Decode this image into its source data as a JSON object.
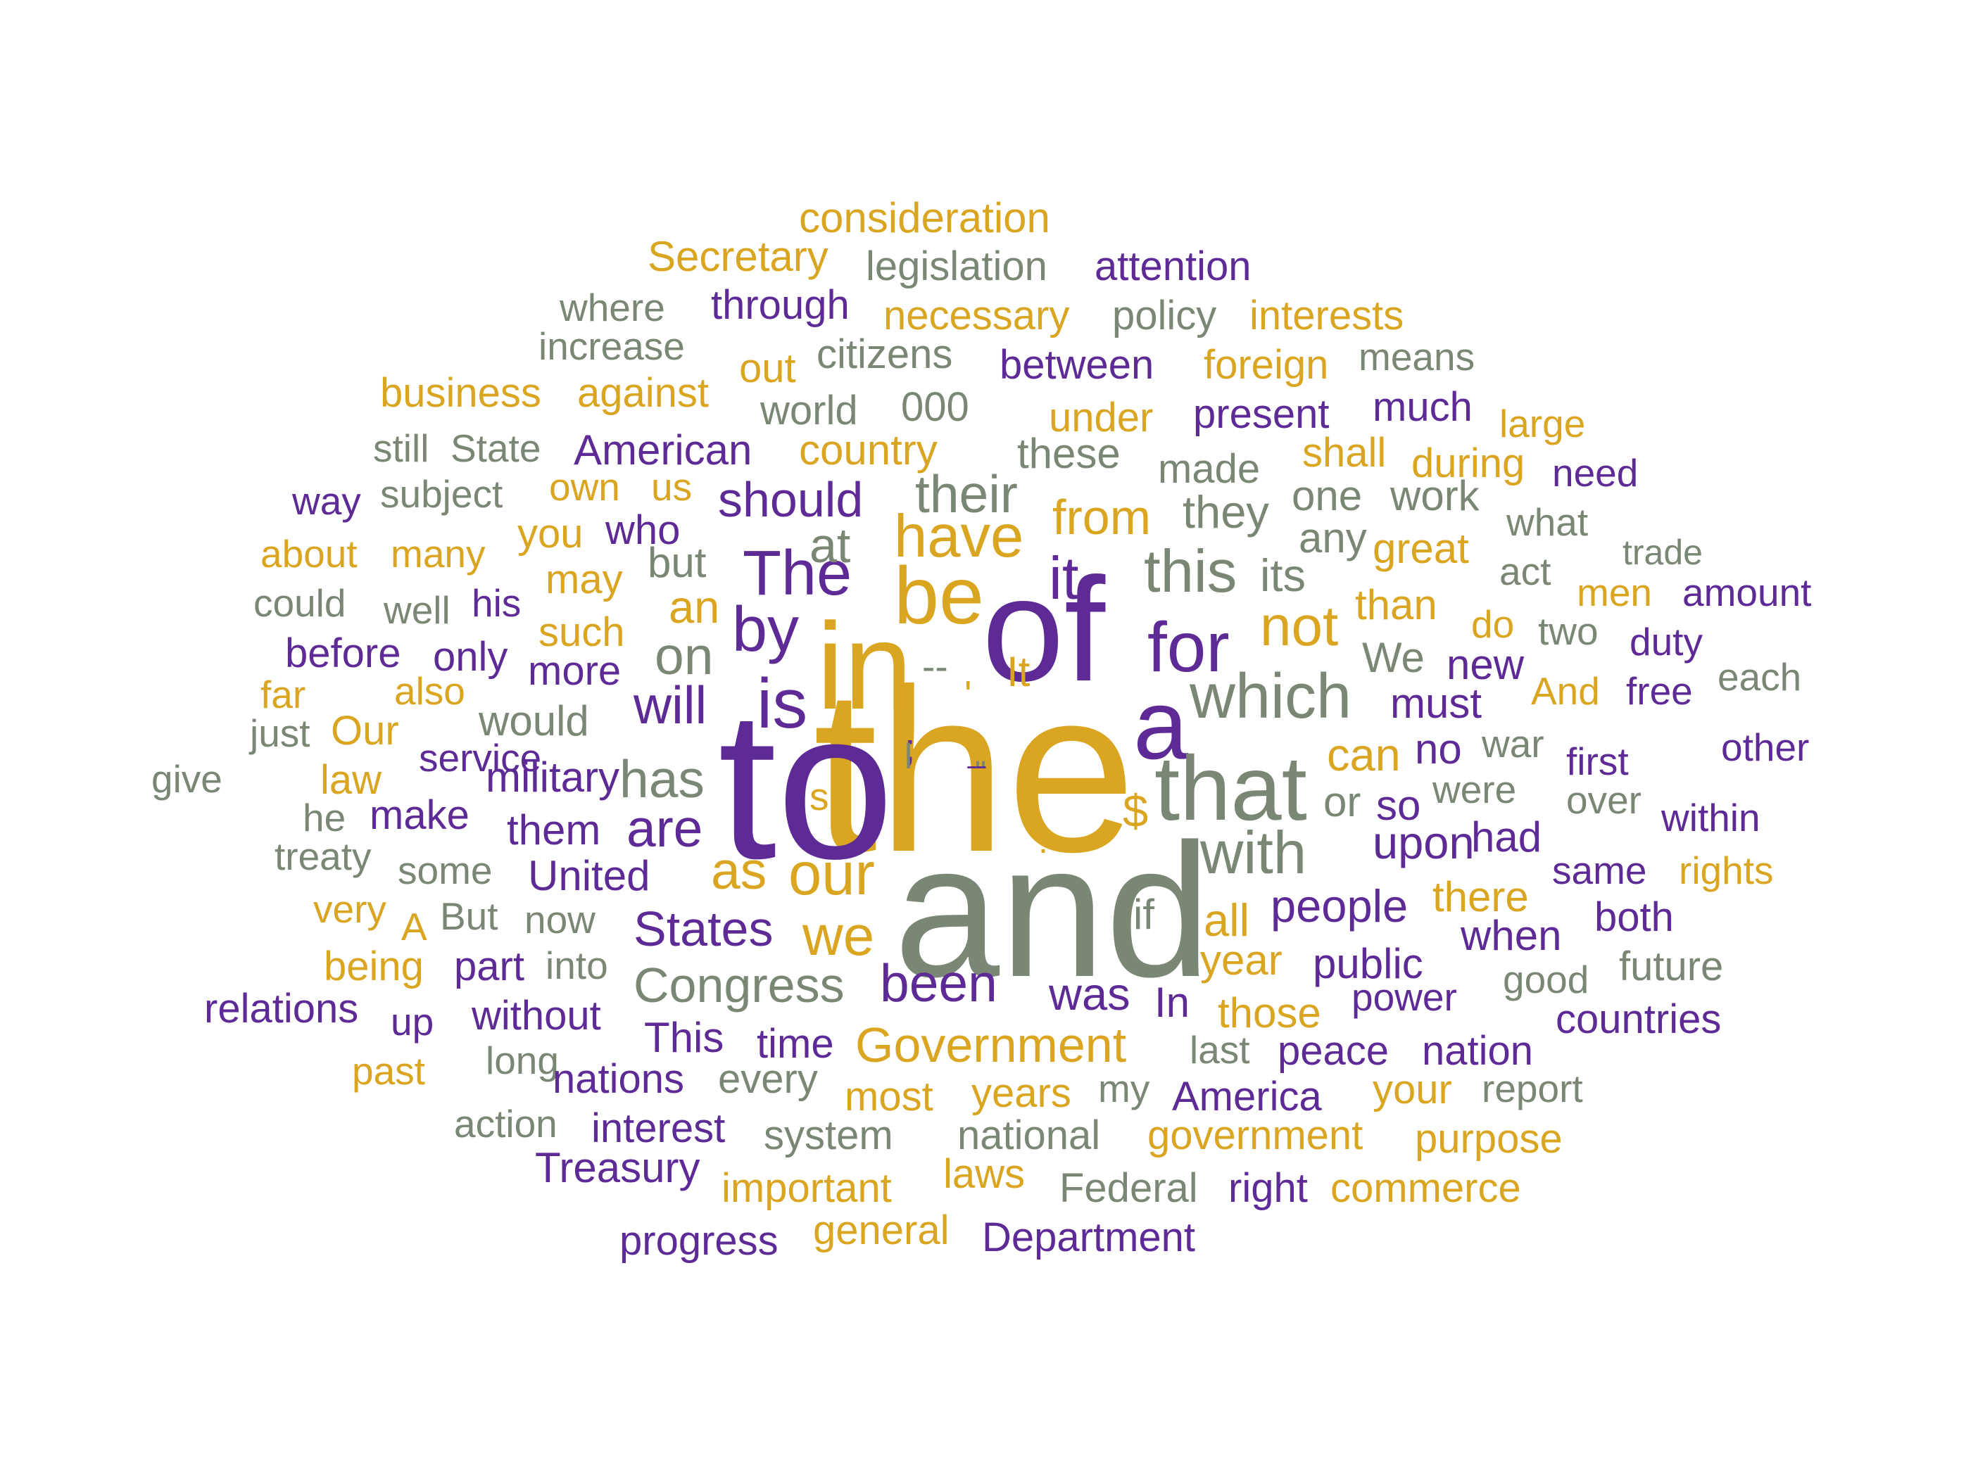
{
  "colors": {
    "gold": "#DAA520",
    "purple": "#5E2A96",
    "gray": "#7A8775"
  },
  "words": [
    {
      "t": "the",
      "c": "gold"
    },
    {
      "t": "to",
      "c": "purple"
    },
    {
      "t": "and",
      "c": "gray"
    },
    {
      "t": "of",
      "c": "purple"
    },
    {
      "t": "in",
      "c": "gold"
    },
    {
      "t": "a",
      "c": "purple"
    },
    {
      "t": "that",
      "c": "gray"
    },
    {
      "t": "be",
      "c": "gold"
    },
    {
      "t": "is",
      "c": "purple"
    },
    {
      "t": "for",
      "c": "purple"
    },
    {
      "t": "which",
      "c": "gray"
    },
    {
      "t": "our",
      "c": "gold"
    },
    {
      "t": "with",
      "c": "gray"
    },
    {
      "t": "by",
      "c": "purple"
    },
    {
      "t": "The",
      "c": "purple"
    },
    {
      "t": "have",
      "c": "gold"
    },
    {
      "t": "this",
      "c": "gray"
    },
    {
      "t": "not",
      "c": "gold"
    },
    {
      "t": "it",
      "c": "purple"
    },
    {
      "t": "we",
      "c": "gold"
    },
    {
      "t": "as",
      "c": "gold"
    },
    {
      "t": "has",
      "c": "gray"
    },
    {
      "t": "are",
      "c": "purple"
    },
    {
      "t": "will",
      "c": "purple"
    },
    {
      "t": "on",
      "c": "gray"
    },
    {
      "t": "their",
      "c": "gray"
    },
    {
      "t": "from",
      "c": "gold"
    },
    {
      "t": "been",
      "c": "purple"
    },
    {
      "t": "Government",
      "c": "gold"
    },
    {
      "t": "Congress",
      "c": "gray"
    },
    {
      "t": "States",
      "c": "purple"
    },
    {
      "t": "should",
      "c": "purple"
    },
    {
      "t": "at",
      "c": "gray"
    },
    {
      "t": "an",
      "c": "gold"
    },
    {
      "t": "was",
      "c": "purple"
    },
    {
      "t": "all",
      "c": "gold"
    },
    {
      "t": "people",
      "c": "purple"
    },
    {
      "t": "year",
      "c": "gold"
    },
    {
      "t": "upon",
      "c": "purple"
    },
    {
      "t": "can",
      "c": "gold"
    },
    {
      "t": "no",
      "c": "purple"
    },
    {
      "t": "must",
      "c": "purple"
    },
    {
      "t": "We",
      "c": "gray"
    },
    {
      "t": "new",
      "c": "purple"
    },
    {
      "t": "than",
      "c": "gold"
    },
    {
      "t": "its",
      "c": "gray"
    },
    {
      "t": "they",
      "c": "gray"
    },
    {
      "t": "any",
      "c": "gray"
    },
    {
      "t": "great",
      "c": "gold"
    },
    {
      "t": "one",
      "c": "gray"
    },
    {
      "t": "work",
      "c": "gray"
    },
    {
      "t": "or",
      "c": "gray"
    },
    {
      "t": "so",
      "c": "purple"
    },
    {
      "t": "were",
      "c": "gray"
    },
    {
      "t": "had",
      "c": "purple"
    },
    {
      "t": "public",
      "c": "purple"
    },
    {
      "t": "power",
      "c": "purple"
    },
    {
      "t": "those",
      "c": "gold"
    },
    {
      "t": "there",
      "c": "gold"
    },
    {
      "t": "when",
      "c": "purple"
    },
    {
      "t": "In",
      "c": "purple"
    },
    {
      "t": "if",
      "c": "gray"
    },
    {
      "t": "$",
      "c": "gold"
    },
    {
      "t": "It",
      "c": "gold"
    },
    {
      "t": "s",
      "c": "gold"
    },
    {
      "t": "--",
      "c": "gray"
    },
    {
      "t": ";",
      "c": "purple"
    },
    {
      "t": ":",
      "c": "gold"
    },
    {
      "t": "'",
      "c": "gold"
    },
    {
      "t": "\"",
      "c": "gray"
    },
    {
      "t": "_",
      "c": "purple"
    },
    {
      "t": "l",
      "c": "gray"
    },
    {
      "t": "consideration",
      "c": "gold"
    },
    {
      "t": "Secretary",
      "c": "gold"
    },
    {
      "t": "legislation",
      "c": "gray"
    },
    {
      "t": "attention",
      "c": "purple"
    },
    {
      "t": "where",
      "c": "gray"
    },
    {
      "t": "through",
      "c": "purple"
    },
    {
      "t": "necessary",
      "c": "gold"
    },
    {
      "t": "policy",
      "c": "gray"
    },
    {
      "t": "interests",
      "c": "gold"
    },
    {
      "t": "increase",
      "c": "gray"
    },
    {
      "t": "out",
      "c": "gold"
    },
    {
      "t": "citizens",
      "c": "gray"
    },
    {
      "t": "between",
      "c": "purple"
    },
    {
      "t": "foreign",
      "c": "gold"
    },
    {
      "t": "means",
      "c": "gray"
    },
    {
      "t": "business",
      "c": "gold"
    },
    {
      "t": "against",
      "c": "gold"
    },
    {
      "t": "world",
      "c": "gray"
    },
    {
      "t": "000",
      "c": "gray"
    },
    {
      "t": "under",
      "c": "gold"
    },
    {
      "t": "present",
      "c": "purple"
    },
    {
      "t": "much",
      "c": "purple"
    },
    {
      "t": "large",
      "c": "gold"
    },
    {
      "t": "still",
      "c": "gray"
    },
    {
      "t": "State",
      "c": "gray"
    },
    {
      "t": "American",
      "c": "purple"
    },
    {
      "t": "country",
      "c": "gold"
    },
    {
      "t": "these",
      "c": "gray"
    },
    {
      "t": "made",
      "c": "gray"
    },
    {
      "t": "shall",
      "c": "gold"
    },
    {
      "t": "during",
      "c": "gold"
    },
    {
      "t": "need",
      "c": "purple"
    },
    {
      "t": "way",
      "c": "purple"
    },
    {
      "t": "subject",
      "c": "gray"
    },
    {
      "t": "own",
      "c": "gold"
    },
    {
      "t": "us",
      "c": "gold"
    },
    {
      "t": "what",
      "c": "gray"
    },
    {
      "t": "you",
      "c": "gold"
    },
    {
      "t": "who",
      "c": "purple"
    },
    {
      "t": "about",
      "c": "gold"
    },
    {
      "t": "many",
      "c": "gold"
    },
    {
      "t": "but",
      "c": "gray"
    },
    {
      "t": "trade",
      "c": "gray"
    },
    {
      "t": "act",
      "c": "gray"
    },
    {
      "t": "could",
      "c": "gray"
    },
    {
      "t": "well",
      "c": "gray"
    },
    {
      "t": "his",
      "c": "purple"
    },
    {
      "t": "may",
      "c": "gold"
    },
    {
      "t": "men",
      "c": "gold"
    },
    {
      "t": "amount",
      "c": "purple"
    },
    {
      "t": "such",
      "c": "gold"
    },
    {
      "t": "do",
      "c": "gold"
    },
    {
      "t": "two",
      "c": "gray"
    },
    {
      "t": "before",
      "c": "purple"
    },
    {
      "t": "only",
      "c": "purple"
    },
    {
      "t": "more",
      "c": "purple"
    },
    {
      "t": "duty",
      "c": "purple"
    },
    {
      "t": "far",
      "c": "gold"
    },
    {
      "t": "also",
      "c": "gold"
    },
    {
      "t": "And",
      "c": "gold"
    },
    {
      "t": "free",
      "c": "purple"
    },
    {
      "t": "each",
      "c": "gray"
    },
    {
      "t": "just",
      "c": "gray"
    },
    {
      "t": "Our",
      "c": "gold"
    },
    {
      "t": "would",
      "c": "gray"
    },
    {
      "t": "war",
      "c": "gray"
    },
    {
      "t": "give",
      "c": "gray"
    },
    {
      "t": "law",
      "c": "gold"
    },
    {
      "t": "military",
      "c": "purple"
    },
    {
      "t": "first",
      "c": "purple"
    },
    {
      "t": "other",
      "c": "purple"
    },
    {
      "t": "service",
      "c": "purple"
    },
    {
      "t": "he",
      "c": "gray"
    },
    {
      "t": "make",
      "c": "purple"
    },
    {
      "t": "them",
      "c": "purple"
    },
    {
      "t": "over",
      "c": "gray"
    },
    {
      "t": "within",
      "c": "purple"
    },
    {
      "t": "treaty",
      "c": "gray"
    },
    {
      "t": "some",
      "c": "gray"
    },
    {
      "t": "United",
      "c": "purple"
    },
    {
      "t": "same",
      "c": "purple"
    },
    {
      "t": "rights",
      "c": "gold"
    },
    {
      "t": "very",
      "c": "gold"
    },
    {
      "t": "A",
      "c": "gold"
    },
    {
      "t": "But",
      "c": "gray"
    },
    {
      "t": "now",
      "c": "gray"
    },
    {
      "t": "both",
      "c": "purple"
    },
    {
      "t": "being",
      "c": "gold"
    },
    {
      "t": "part",
      "c": "purple"
    },
    {
      "t": "into",
      "c": "gray"
    },
    {
      "t": "good",
      "c": "gray"
    },
    {
      "t": "future",
      "c": "gray"
    },
    {
      "t": "relations",
      "c": "purple"
    },
    {
      "t": "up",
      "c": "purple"
    },
    {
      "t": "without",
      "c": "purple"
    },
    {
      "t": "countries",
      "c": "purple"
    },
    {
      "t": "This",
      "c": "purple"
    },
    {
      "t": "time",
      "c": "purple"
    },
    {
      "t": "last",
      "c": "gray"
    },
    {
      "t": "peace",
      "c": "purple"
    },
    {
      "t": "nation",
      "c": "purple"
    },
    {
      "t": "past",
      "c": "gold"
    },
    {
      "t": "long",
      "c": "gray"
    },
    {
      "t": "nations",
      "c": "purple"
    },
    {
      "t": "every",
      "c": "gray"
    },
    {
      "t": "most",
      "c": "gold"
    },
    {
      "t": "years",
      "c": "gold"
    },
    {
      "t": "my",
      "c": "gray"
    },
    {
      "t": "America",
      "c": "purple"
    },
    {
      "t": "your",
      "c": "gold"
    },
    {
      "t": "report",
      "c": "gray"
    },
    {
      "t": "action",
      "c": "gray"
    },
    {
      "t": "interest",
      "c": "purple"
    },
    {
      "t": "system",
      "c": "gray"
    },
    {
      "t": "national",
      "c": "gray"
    },
    {
      "t": "government",
      "c": "gold"
    },
    {
      "t": "purpose",
      "c": "gold"
    },
    {
      "t": "Treasury",
      "c": "purple"
    },
    {
      "t": "important",
      "c": "gold"
    },
    {
      "t": "laws",
      "c": "gold"
    },
    {
      "t": "Federal",
      "c": "gray"
    },
    {
      "t": "right",
      "c": "purple"
    },
    {
      "t": "commerce",
      "c": "gold"
    },
    {
      "t": "progress",
      "c": "purple"
    },
    {
      "t": "general",
      "c": "gold"
    },
    {
      "t": "Department",
      "c": "purple"
    }
  ]
}
